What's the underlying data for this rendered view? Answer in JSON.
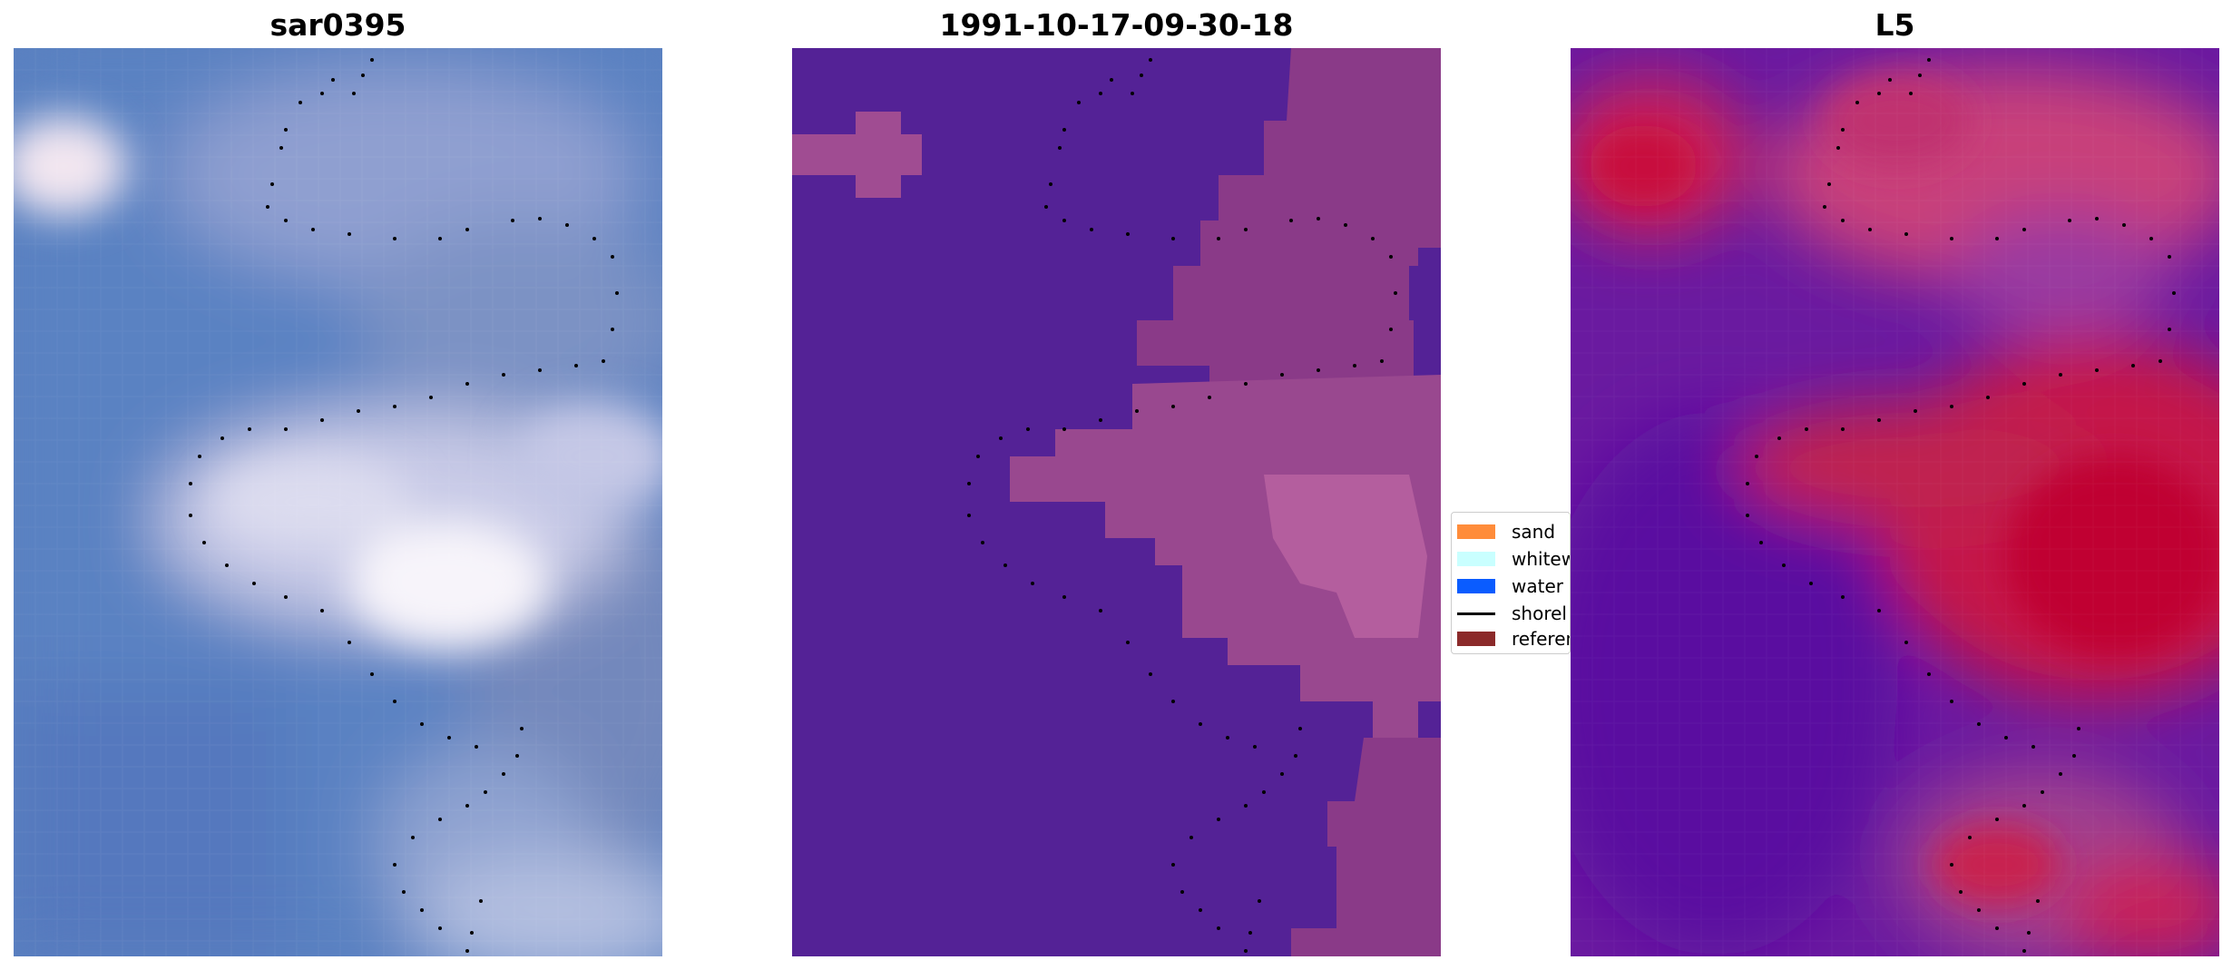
{
  "panels": [
    {
      "title": "sar0395",
      "kind": "rgb_composite"
    },
    {
      "title": "1991-10-17-09-30-18",
      "kind": "classified"
    },
    {
      "title": "L5",
      "kind": "index_map"
    }
  ],
  "legend": {
    "items": [
      {
        "label": "sand",
        "color": "#ff8c3a",
        "marker": "patch"
      },
      {
        "label": "whitew",
        "color": "#c9ffff",
        "marker": "patch"
      },
      {
        "label": "water",
        "color": "#0a5cff",
        "marker": "patch"
      },
      {
        "label": "shorel",
        "color": "#000000",
        "marker": "line"
      },
      {
        "label": "referen",
        "color": "#8b2a2a",
        "marker": "patch"
      }
    ]
  },
  "colors": {
    "classified_background": "#542296",
    "classified_sand_overlay": "#9b4a8a",
    "shoreline_dots": "#000000"
  }
}
